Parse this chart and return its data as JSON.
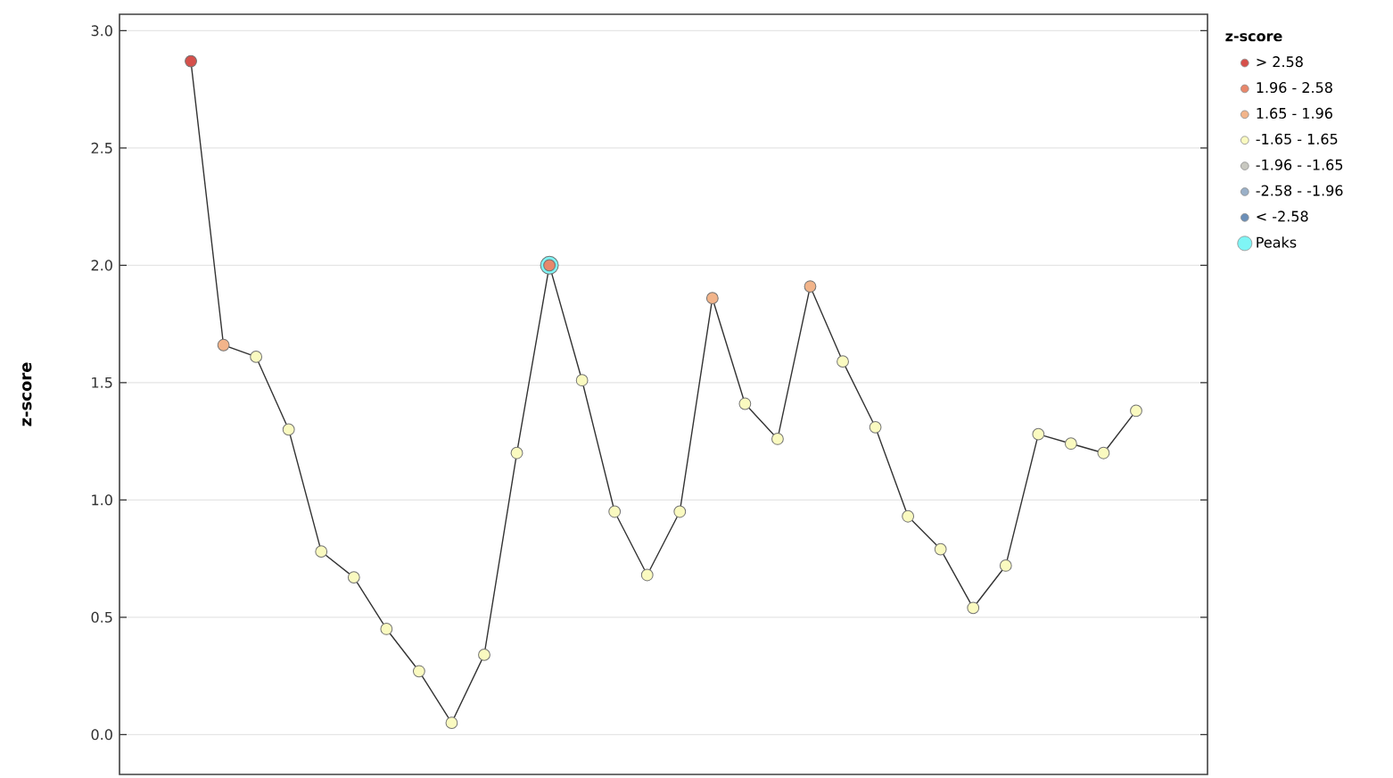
{
  "chart_data": {
    "type": "line",
    "ylabel": "z-score",
    "legend_title": "z-score",
    "legend": "right",
    "grid": "y",
    "categories": [
      null,
      null,
      null,
      null,
      null,
      null,
      null,
      null,
      null,
      null,
      null,
      null,
      null,
      null,
      null,
      null,
      null,
      null,
      null,
      null,
      null,
      null,
      null,
      null,
      null,
      null,
      null,
      null,
      null,
      null
    ],
    "ylim": [
      -0.17,
      3.07
    ],
    "yticks": [
      {
        "value": 0,
        "label": "0.0"
      },
      {
        "value": 0.5,
        "label": "0.5"
      },
      {
        "value": 1,
        "label": "1.0"
      },
      {
        "value": 1.5,
        "label": "1.5"
      },
      {
        "value": 2,
        "label": "2.0"
      },
      {
        "value": 2.5,
        "label": "2.5"
      },
      {
        "value": 3,
        "label": "3.0"
      }
    ],
    "series": [
      {
        "color": "#333333",
        "values": [
          2.87,
          1.66,
          1.61,
          1.3,
          0.78,
          0.67,
          0.45,
          0.27,
          0.05,
          0.34,
          1.2,
          2.0,
          1.51,
          0.95,
          0.68,
          0.95,
          1.86,
          1.41,
          1.26,
          1.91,
          1.59,
          1.31,
          0.93,
          0.79,
          0.54,
          0.72,
          1.28,
          1.24,
          1.2,
          1.38
        ]
      },
      {
        "type": "scatter",
        "name": "Peaks",
        "color": "#7ff5f5",
        "values": [
          null,
          null,
          null,
          null,
          null,
          null,
          null,
          null,
          null,
          null,
          null,
          2.0,
          null,
          null,
          null,
          null,
          null,
          null,
          null,
          null,
          null,
          null,
          null,
          null,
          null,
          null,
          null,
          null,
          null,
          null
        ]
      },
      {
        "type": "scatter",
        "name": "> 2.58",
        "color": "#d6504b",
        "values": [
          2.87,
          null,
          null,
          null,
          null,
          null,
          null,
          null,
          null,
          null,
          null,
          null,
          null,
          null,
          null,
          null,
          null,
          null,
          null,
          null,
          null,
          null,
          null,
          null,
          null,
          null,
          null,
          null,
          null,
          null
        ]
      },
      {
        "type": "scatter",
        "name": "1.96 - 2.58",
        "color": "#e8876b",
        "values": [
          null,
          null,
          null,
          null,
          null,
          null,
          null,
          null,
          null,
          null,
          null,
          2.0,
          null,
          null,
          null,
          null,
          null,
          null,
          null,
          null,
          null,
          null,
          null,
          null,
          null,
          null,
          null,
          null,
          null,
          null
        ]
      },
      {
        "type": "scatter",
        "name": "1.65 - 1.96",
        "color": "#f2b48a",
        "values": [
          null,
          1.66,
          null,
          null,
          null,
          null,
          null,
          null,
          null,
          null,
          null,
          null,
          null,
          null,
          null,
          null,
          1.86,
          null,
          null,
          1.91,
          null,
          null,
          null,
          null,
          null,
          null,
          null,
          null,
          null,
          null
        ]
      },
      {
        "type": "scatter",
        "name": "-1.65 - 1.65",
        "color": "#fafac0",
        "values": [
          null,
          null,
          1.61,
          1.3,
          0.78,
          0.67,
          0.45,
          0.27,
          0.05,
          0.34,
          1.2,
          null,
          1.51,
          0.95,
          0.68,
          0.95,
          null,
          1.41,
          1.26,
          null,
          1.59,
          1.31,
          0.93,
          0.79,
          0.54,
          0.72,
          1.28,
          1.24,
          1.2,
          1.38
        ]
      },
      {
        "type": "scatter",
        "name": "-1.96 - -1.65",
        "color": "#c8c8c0",
        "values": [
          null,
          null,
          null,
          null,
          null,
          null,
          null,
          null,
          null,
          null,
          null,
          null,
          null,
          null,
          null,
          null,
          null,
          null,
          null,
          null,
          null,
          null,
          null,
          null,
          null,
          null,
          null,
          null,
          null,
          null
        ]
      },
      {
        "type": "scatter",
        "name": "-2.58 - -1.96",
        "color": "#9ab0c8",
        "values": [
          null,
          null,
          null,
          null,
          null,
          null,
          null,
          null,
          null,
          null,
          null,
          null,
          null,
          null,
          null,
          null,
          null,
          null,
          null,
          null,
          null,
          null,
          null,
          null,
          null,
          null,
          null,
          null,
          null,
          null
        ]
      },
      {
        "type": "scatter",
        "name": "< -2.58",
        "color": "#6b8fb8",
        "values": [
          null,
          null,
          null,
          null,
          null,
          null,
          null,
          null,
          null,
          null,
          null,
          null,
          null,
          null,
          null,
          null,
          null,
          null,
          null,
          null,
          null,
          null,
          null,
          null,
          null,
          null,
          null,
          null,
          null,
          null
        ]
      }
    ]
  }
}
